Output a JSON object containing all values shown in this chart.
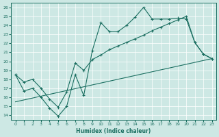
{
  "xlabel": "Humidex (Indice chaleur)",
  "xlim": [
    -0.5,
    23.5
  ],
  "ylim": [
    13.5,
    26.5
  ],
  "yticks": [
    14,
    15,
    16,
    17,
    18,
    19,
    20,
    21,
    22,
    23,
    24,
    25,
    26
  ],
  "xticks": [
    0,
    1,
    2,
    3,
    4,
    5,
    6,
    7,
    8,
    9,
    10,
    11,
    12,
    13,
    14,
    15,
    16,
    17,
    18,
    19,
    20,
    21,
    22,
    23
  ],
  "bg_color": "#cde8e4",
  "line_color": "#1a6e60",
  "line1_x": [
    0,
    1,
    2,
    3,
    4,
    5,
    6,
    7,
    8,
    9,
    10,
    11,
    12,
    13,
    14,
    15,
    16,
    17,
    18,
    19,
    20,
    21,
    22,
    23
  ],
  "line1_y": [
    18.5,
    16.7,
    17.0,
    16.0,
    14.8,
    13.9,
    15.0,
    18.5,
    16.2,
    21.2,
    24.3,
    23.3,
    23.3,
    24.0,
    24.9,
    26.0,
    24.7,
    24.7,
    24.7,
    24.8,
    24.7,
    22.1,
    20.8,
    20.3
  ],
  "line2_x": [
    0,
    1,
    2,
    3,
    4,
    5,
    6,
    7,
    8,
    9,
    10,
    11,
    12,
    13,
    14,
    15,
    16,
    17,
    18,
    19,
    20,
    21,
    22,
    23
  ],
  "line2_y": [
    18.5,
    17.7,
    18.0,
    17.0,
    15.8,
    14.9,
    16.6,
    19.8,
    19.0,
    20.2,
    20.7,
    21.3,
    21.7,
    22.1,
    22.5,
    22.9,
    23.4,
    23.8,
    24.2,
    24.6,
    25.0,
    22.1,
    20.8,
    20.3
  ],
  "line3_x": [
    0,
    23
  ],
  "line3_y": [
    15.5,
    20.3
  ]
}
